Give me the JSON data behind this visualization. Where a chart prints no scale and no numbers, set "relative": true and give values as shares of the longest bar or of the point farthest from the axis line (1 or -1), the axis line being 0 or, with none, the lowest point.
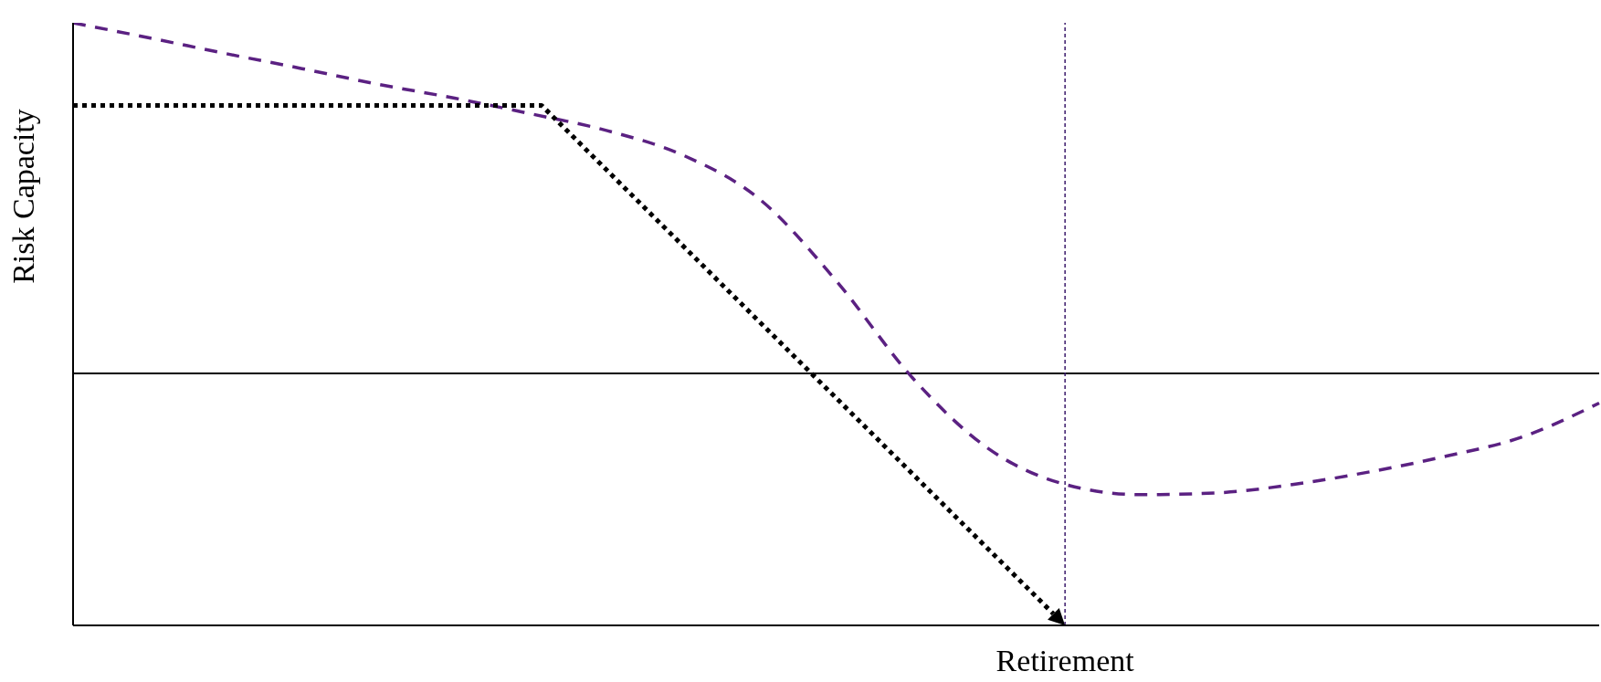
{
  "chart_data": {
    "type": "line",
    "ylabel": "Risk Capacity",
    "xlabel": "Retirement",
    "relative": true,
    "categories": [
      null,
      null,
      null,
      null,
      null,
      null,
      null,
      null,
      null,
      null,
      null,
      null,
      null,
      null,
      null,
      null,
      null,
      null,
      null,
      null,
      null
    ],
    "series": [
      {
        "color": "#5b2182",
        "line_style": "dashed",
        "values": [
          1.0,
          0.975,
          0.949,
          0.924,
          0.898,
          0.875,
          0.849,
          0.821,
          0.78,
          0.707,
          0.572,
          0.411,
          0.293,
          0.234,
          0.217,
          0.22,
          0.234,
          0.255,
          0.281,
          0.313,
          0.369
        ]
      }
    ],
    "ref_lines": [
      {
        "axis": "y",
        "value": 0.418,
        "color": "#000000",
        "line_style": "solid"
      }
    ],
    "marker": "none"
  }
}
